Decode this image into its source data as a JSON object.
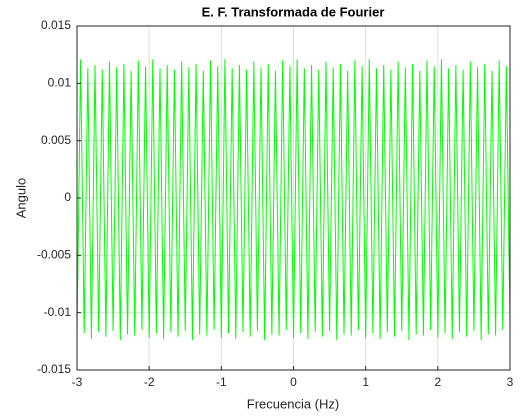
{
  "chart_data": {
    "type": "line",
    "title": "E. F. Transformada de Fourier",
    "xlabel": "Frecuencia (Hz)",
    "ylabel": "Angulo",
    "xlim": [
      -3,
      3
    ],
    "ylim": [
      -0.015,
      0.015
    ],
    "xticks": [
      -3,
      -2,
      -1,
      0,
      1,
      2,
      3
    ],
    "yticks": [
      -0.015,
      -0.01,
      -0.005,
      0,
      0.005,
      0.01,
      0.015
    ],
    "grid": true,
    "x": [
      -3,
      -2.95,
      -2.9,
      -2.85,
      -2.8,
      -2.75,
      -2.7,
      -2.65,
      -2.6,
      -2.55,
      -2.5,
      -2.45,
      -2.4,
      -2.35,
      -2.3,
      -2.25,
      -2.2,
      -2.15,
      -2.1,
      -2.05,
      -2,
      -1.95,
      -1.9,
      -1.85,
      -1.8,
      -1.75,
      -1.7,
      -1.65,
      -1.6,
      -1.55,
      -1.5,
      -1.45,
      -1.4,
      -1.35,
      -1.3,
      -1.25,
      -1.2,
      -1.15,
      -1.1,
      -1.05,
      -1,
      -0.95,
      -0.9,
      -0.85,
      -0.8,
      -0.75,
      -0.7,
      -0.65,
      -0.6,
      -0.55,
      -0.5,
      -0.45,
      -0.4,
      -0.35,
      -0.3,
      -0.25,
      -0.2,
      -0.15,
      -0.1,
      -0.05,
      0,
      0.05,
      0.1,
      0.15,
      0.2,
      0.25,
      0.3,
      0.35,
      0.4,
      0.45,
      0.5,
      0.55,
      0.6,
      0.65,
      0.7,
      0.75,
      0.8,
      0.85,
      0.9,
      0.95,
      1,
      1.05,
      1.1,
      1.15,
      1.2,
      1.25,
      1.3,
      1.35,
      1.4,
      1.45,
      1.5,
      1.55,
      1.6,
      1.65,
      1.7,
      1.75,
      1.8,
      1.85,
      1.9,
      1.95,
      2,
      2.05,
      2.1,
      2.15,
      2.2,
      2.25,
      2.3,
      2.35,
      2.4,
      2.45,
      2.5,
      2.55,
      2.6,
      2.65,
      2.7,
      2.75,
      2.8,
      2.85,
      2.9,
      2.95,
      3
    ],
    "series": [
      {
        "color": "#00ff00",
        "values": [
          -0.0122,
          0.0121,
          -0.0118,
          0.0113,
          -0.0123,
          0.0116,
          -0.0117,
          0.0112,
          -0.0121,
          0.0119,
          -0.0116,
          0.0114,
          -0.0124,
          0.0117,
          -0.0119,
          0.0111,
          -0.012,
          0.012,
          -0.0115,
          0.0115,
          -0.0122,
          0.0121,
          -0.0118,
          0.0113,
          -0.0123,
          0.0116,
          -0.0117,
          0.0112,
          -0.0121,
          0.0119,
          -0.0116,
          0.0114,
          -0.0124,
          0.0117,
          -0.0119,
          0.0111,
          -0.012,
          0.012,
          -0.0115,
          0.0115,
          -0.0122,
          0.0121,
          -0.0118,
          0.0113,
          -0.0123,
          0.0116,
          -0.0117,
          0.0112,
          -0.0121,
          0.0119,
          -0.0116,
          0.0114,
          -0.0124,
          0.0117,
          -0.0119,
          0.0111,
          -0.012,
          0.012,
          -0.0115,
          0.0115,
          -0.0122,
          0.0121,
          -0.0118,
          0.0113,
          -0.0123,
          0.0116,
          -0.0117,
          0.0112,
          -0.0121,
          0.0119,
          -0.0116,
          0.0114,
          -0.0124,
          0.0117,
          -0.0119,
          0.0111,
          -0.012,
          0.012,
          -0.0115,
          0.0115,
          -0.0122,
          0.0121,
          -0.0118,
          0.0113,
          -0.0123,
          0.0116,
          -0.0117,
          0.0112,
          -0.0121,
          0.0119,
          -0.0116,
          0.0114,
          -0.0124,
          0.0117,
          -0.0119,
          0.0111,
          -0.012,
          0.012,
          -0.0115,
          0.0115,
          -0.0122,
          0.0121,
          -0.0118,
          0.0113,
          -0.0123,
          0.0116,
          -0.0117,
          0.0112,
          -0.0121,
          0.0119,
          -0.0116,
          0.0114,
          -0.0124,
          0.0117,
          -0.0119,
          0.0111,
          -0.012,
          0.012,
          -0.0115,
          0.0115,
          -0.0112
        ]
      }
    ]
  }
}
